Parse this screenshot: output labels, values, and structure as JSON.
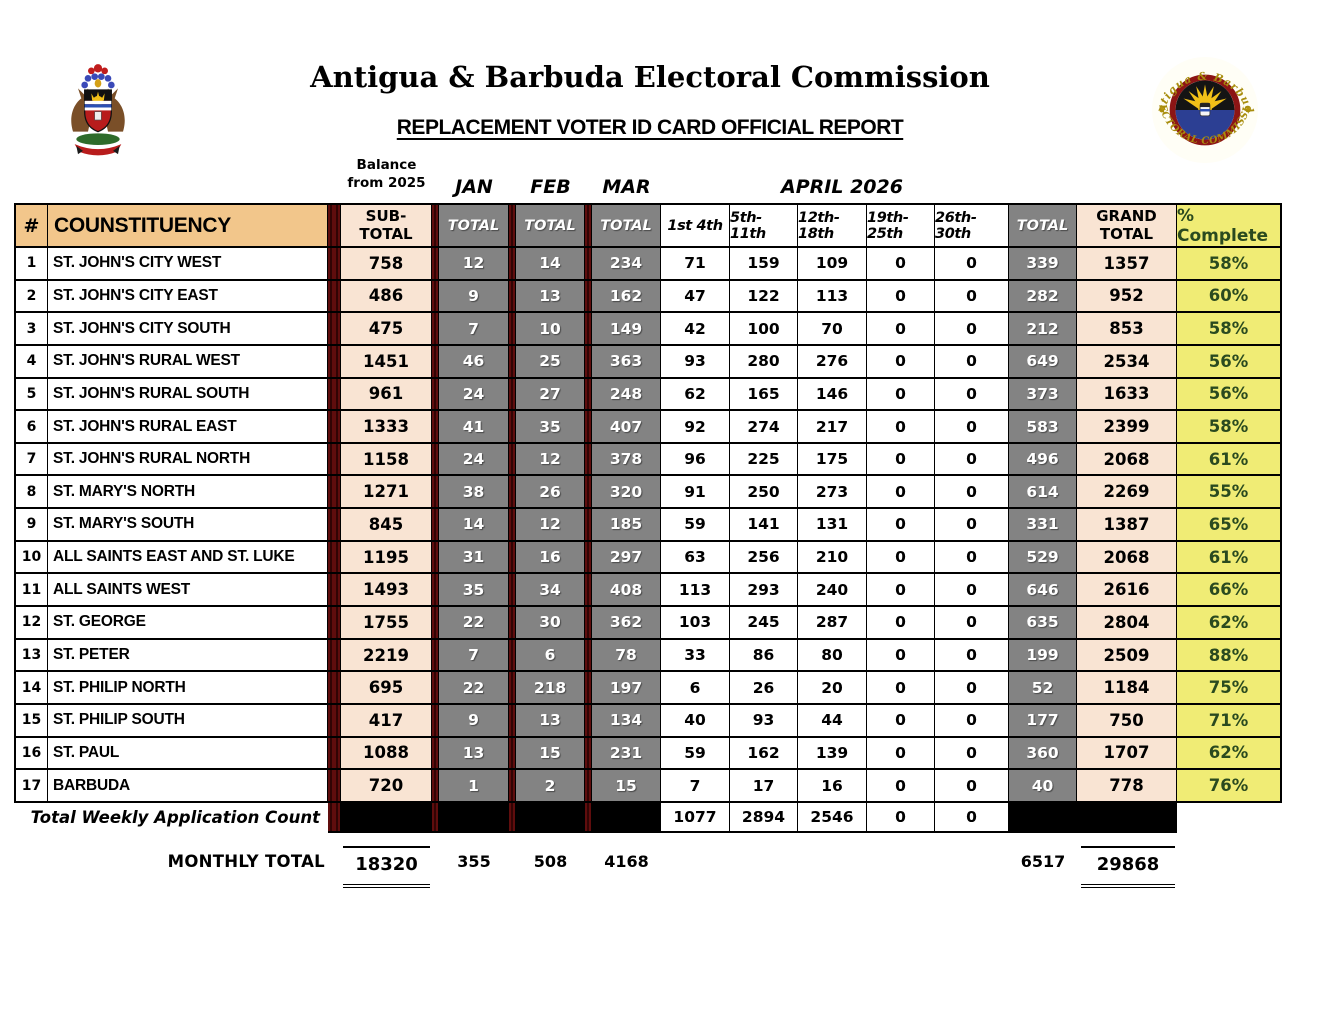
{
  "header": {
    "title": "Antigua & Barbuda Electoral Commission",
    "subtitle": "REPLACEMENT VOTER ID CARD OFFICIAL REPORT",
    "left_logo": "antigua-barbuda-coat-of-arms",
    "right_logo": "electoral-commission-seal",
    "seal_text_top": "Antigua & Barbuda",
    "seal_text_bottom": "ELECTORAL COMMISSION"
  },
  "table": {
    "balance_label": "Balance\nfrom 2025",
    "month_labels": {
      "jan": "JAN",
      "feb": "FEB",
      "mar": "MAR",
      "april": "APRIL 2026"
    },
    "headers": {
      "num": "#",
      "constituency": "COUNSTITUENCY",
      "subtotal": "SUB-\nTOTAL",
      "month_total": "TOTAL",
      "april_weeks": [
        "1st 4th",
        "5th-11th",
        "12th-18th",
        "19th-25th",
        "26th-30th"
      ],
      "grand_total": "GRAND\nTOTAL",
      "pct_complete": "% Complete"
    },
    "rows": [
      {
        "num": 1,
        "name": "ST. JOHN'S CITY WEST",
        "subtotal": 758,
        "jan": 12,
        "feb": 14,
        "mar": 234,
        "weeks": [
          71,
          159,
          109,
          0,
          0
        ],
        "april_total": 339,
        "grand_total": 1357,
        "pct": "58%"
      },
      {
        "num": 2,
        "name": "ST. JOHN'S CITY EAST",
        "subtotal": 486,
        "jan": 9,
        "feb": 13,
        "mar": 162,
        "weeks": [
          47,
          122,
          113,
          0,
          0
        ],
        "april_total": 282,
        "grand_total": 952,
        "pct": "60%"
      },
      {
        "num": 3,
        "name": "ST. JOHN'S CITY SOUTH",
        "subtotal": 475,
        "jan": 7,
        "feb": 10,
        "mar": 149,
        "weeks": [
          42,
          100,
          70,
          0,
          0
        ],
        "april_total": 212,
        "grand_total": 853,
        "pct": "58%"
      },
      {
        "num": 4,
        "name": "ST. JOHN'S RURAL WEST",
        "subtotal": 1451,
        "jan": 46,
        "feb": 25,
        "mar": 363,
        "weeks": [
          93,
          280,
          276,
          0,
          0
        ],
        "april_total": 649,
        "grand_total": 2534,
        "pct": "56%"
      },
      {
        "num": 5,
        "name": "ST. JOHN'S RURAL SOUTH",
        "subtotal": 961,
        "jan": 24,
        "feb": 27,
        "mar": 248,
        "weeks": [
          62,
          165,
          146,
          0,
          0
        ],
        "april_total": 373,
        "grand_total": 1633,
        "pct": "56%"
      },
      {
        "num": 6,
        "name": "ST. JOHN'S RURAL EAST",
        "subtotal": 1333,
        "jan": 41,
        "feb": 35,
        "mar": 407,
        "weeks": [
          92,
          274,
          217,
          0,
          0
        ],
        "april_total": 583,
        "grand_total": 2399,
        "pct": "58%"
      },
      {
        "num": 7,
        "name": "ST. JOHN'S RURAL NORTH",
        "subtotal": 1158,
        "jan": 24,
        "feb": 12,
        "mar": 378,
        "weeks": [
          96,
          225,
          175,
          0,
          0
        ],
        "april_total": 496,
        "grand_total": 2068,
        "pct": "61%"
      },
      {
        "num": 8,
        "name": "ST. MARY'S NORTH",
        "subtotal": 1271,
        "jan": 38,
        "feb": 26,
        "mar": 320,
        "weeks": [
          91,
          250,
          273,
          0,
          0
        ],
        "april_total": 614,
        "grand_total": 2269,
        "pct": "55%"
      },
      {
        "num": 9,
        "name": "ST. MARY'S SOUTH",
        "subtotal": 845,
        "jan": 14,
        "feb": 12,
        "mar": 185,
        "weeks": [
          59,
          141,
          131,
          0,
          0
        ],
        "april_total": 331,
        "grand_total": 1387,
        "pct": "65%"
      },
      {
        "num": 10,
        "name": "ALL SAINTS EAST AND ST. LUKE",
        "subtotal": 1195,
        "jan": 31,
        "feb": 16,
        "mar": 297,
        "weeks": [
          63,
          256,
          210,
          0,
          0
        ],
        "april_total": 529,
        "grand_total": 2068,
        "pct": "61%"
      },
      {
        "num": 11,
        "name": "ALL SAINTS WEST",
        "subtotal": 1493,
        "jan": 35,
        "feb": 34,
        "mar": 408,
        "weeks": [
          113,
          293,
          240,
          0,
          0
        ],
        "april_total": 646,
        "grand_total": 2616,
        "pct": "66%"
      },
      {
        "num": 12,
        "name": "ST. GEORGE",
        "subtotal": 1755,
        "jan": 22,
        "feb": 30,
        "mar": 362,
        "weeks": [
          103,
          245,
          287,
          0,
          0
        ],
        "april_total": 635,
        "grand_total": 2804,
        "pct": "62%"
      },
      {
        "num": 13,
        "name": "ST. PETER",
        "subtotal": 2219,
        "jan": 7,
        "feb": 6,
        "mar": 78,
        "weeks": [
          33,
          86,
          80,
          0,
          0
        ],
        "april_total": 199,
        "grand_total": 2509,
        "pct": "88%"
      },
      {
        "num": 14,
        "name": "ST. PHILIP NORTH",
        "subtotal": 695,
        "jan": 22,
        "feb": 218,
        "mar": 197,
        "weeks": [
          6,
          26,
          20,
          0,
          0
        ],
        "april_total": 52,
        "grand_total": 1184,
        "pct": "75%"
      },
      {
        "num": 15,
        "name": "ST. PHILIP SOUTH",
        "subtotal": 417,
        "jan": 9,
        "feb": 13,
        "mar": 134,
        "weeks": [
          40,
          93,
          44,
          0,
          0
        ],
        "april_total": 177,
        "grand_total": 750,
        "pct": "71%"
      },
      {
        "num": 16,
        "name": "ST. PAUL",
        "subtotal": 1088,
        "jan": 13,
        "feb": 15,
        "mar": 231,
        "weeks": [
          59,
          162,
          139,
          0,
          0
        ],
        "april_total": 360,
        "grand_total": 1707,
        "pct": "62%"
      },
      {
        "num": 17,
        "name": "BARBUDA",
        "subtotal": 720,
        "jan": 1,
        "feb": 2,
        "mar": 15,
        "weeks": [
          7,
          17,
          16,
          0,
          0
        ],
        "april_total": 40,
        "grand_total": 778,
        "pct": "76%"
      }
    ],
    "weekly": {
      "label": "Total Weekly Application Count",
      "weeks": [
        1077,
        2894,
        2546,
        0,
        0
      ]
    },
    "monthly": {
      "label": "MONTHLY TOTAL",
      "subtotal": 18320,
      "jan": 355,
      "feb": 508,
      "mar": 4168,
      "april_total": 6517,
      "grand_total": 29868
    }
  },
  "colors": {
    "header_tan": "#f2c68b",
    "cell_peach": "#f9e4d3",
    "cell_gray": "#838383",
    "separator_maroon": "#5f0d0d",
    "pct_yellow": "#f0ec75",
    "pct_text_green": "#2a4a1f",
    "blackout": "#000000"
  }
}
